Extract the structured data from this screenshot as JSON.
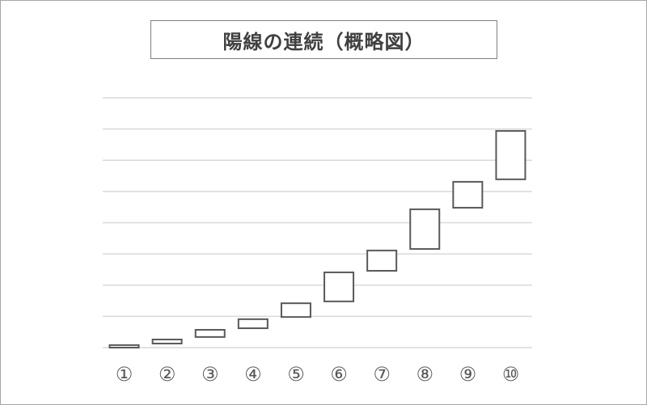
{
  "chart_data": {
    "type": "bar",
    "subtype": "floating-hollow-candles",
    "title": "陽線の連続（概略図）",
    "categories": [
      "①",
      "②",
      "③",
      "④",
      "⑤",
      "⑥",
      "⑦",
      "⑧",
      "⑨",
      "⑩"
    ],
    "open": [
      0.0,
      0.13,
      0.34,
      0.62,
      0.98,
      1.48,
      2.46,
      3.16,
      4.48,
      5.39
    ],
    "close": [
      0.08,
      0.26,
      0.57,
      0.91,
      1.42,
      2.41,
      3.11,
      4.43,
      5.31,
      6.94
    ],
    "ylim": [
      0,
      8
    ],
    "y_tick_labels": "none",
    "grid": true,
    "legend": "none"
  },
  "colors": {
    "candle_stroke": "#595959",
    "candle_fill": "#ffffff",
    "gridline": "#d9d9d9",
    "title_text": "#404040",
    "tick_label": "#595959"
  }
}
